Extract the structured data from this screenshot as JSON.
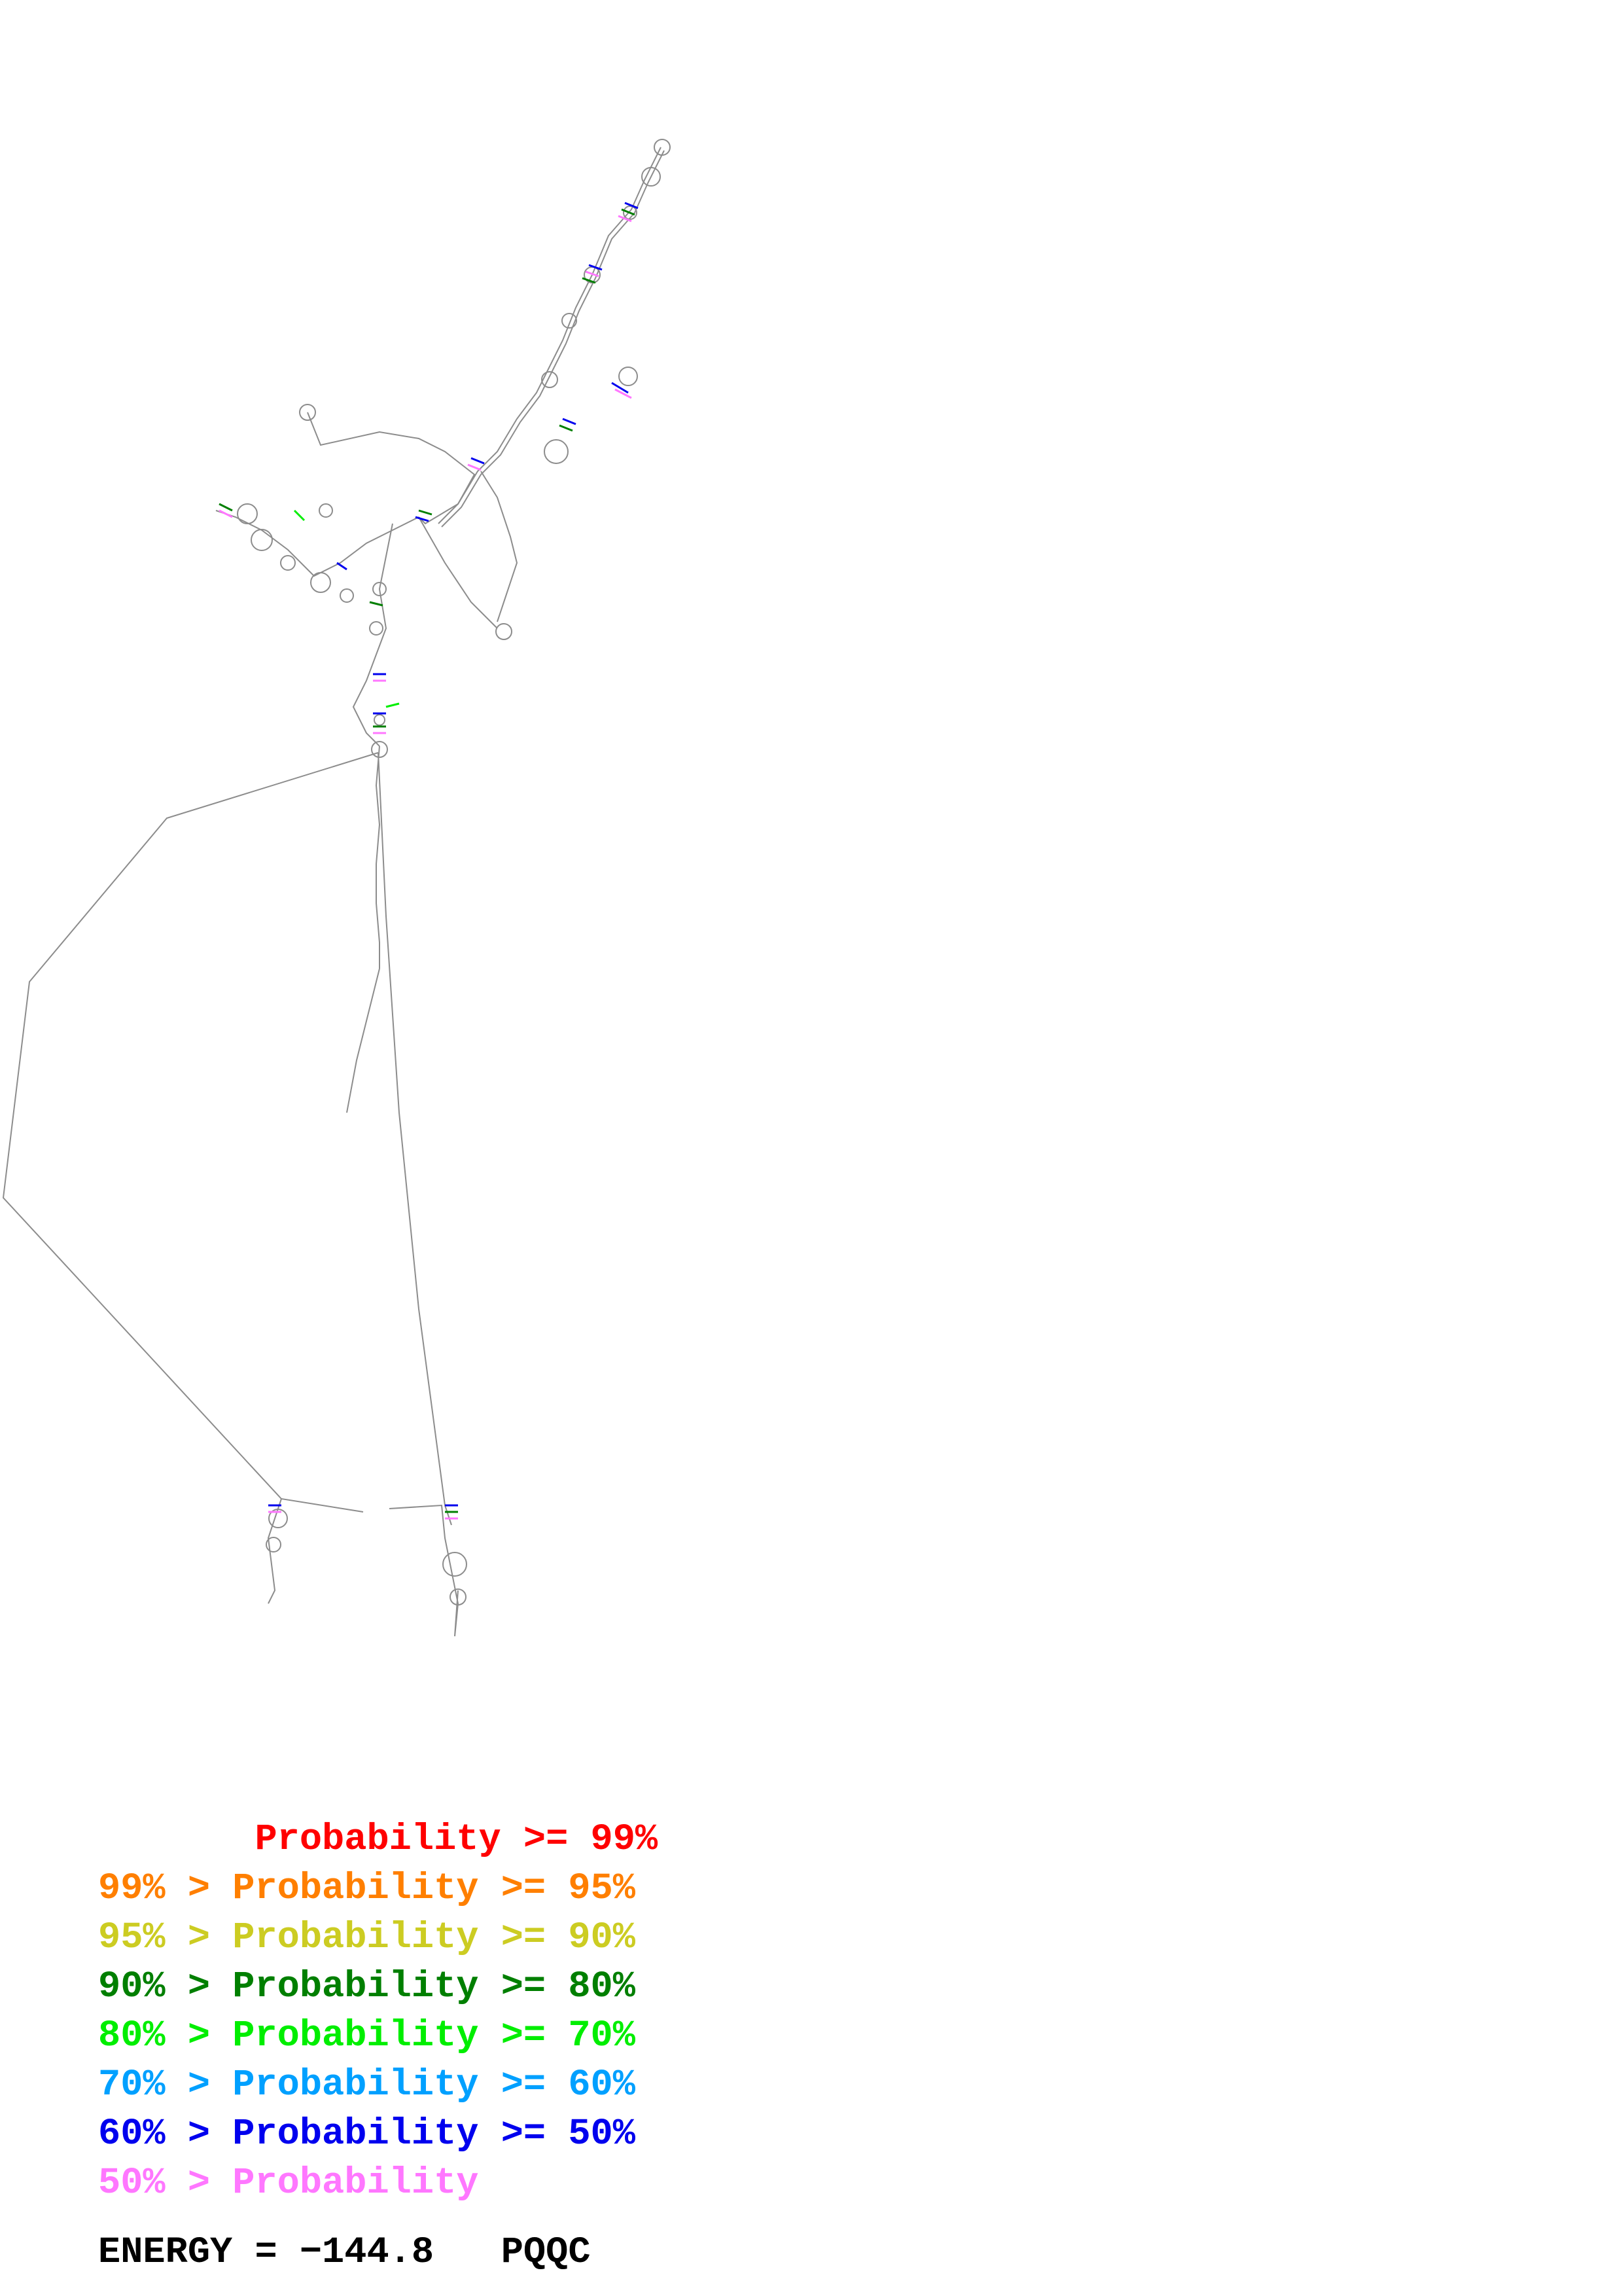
{
  "legend": [
    {
      "text": "       Probability >= 99%",
      "color": "#ff0000"
    },
    {
      "text": "99% > Probability >= 95%",
      "color": "#ff7f00"
    },
    {
      "text": "95% > Probability >= 90%",
      "color": "#cccc22"
    },
    {
      "text": "90% > Probability >= 80%",
      "color": "#007f00"
    },
    {
      "text": "80% > Probability >= 70%",
      "color": "#00ee00"
    },
    {
      "text": "70% > Probability >= 60%",
      "color": "#00a0ff"
    },
    {
      "text": "60% > Probability >= 50%",
      "color": "#0000ee"
    },
    {
      "text": "50% > Probability",
      "color": "#ff77ff"
    }
  ],
  "energy_label": "ENERGY = −144.8   PQQC",
  "colors": {
    "backbone": "#8c8c8c",
    "pair_low": "#ff77ff",
    "pair_mid": "#0000ee",
    "pair_hi": "#007f00"
  }
}
